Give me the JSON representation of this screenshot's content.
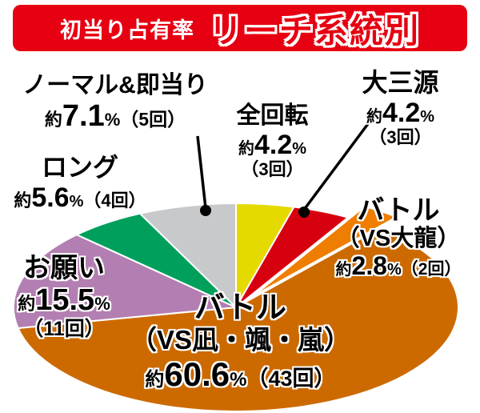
{
  "header": {
    "subtitle": "初当り占有率",
    "title": "リーチ系統別",
    "bg_color": "#e60012",
    "subtitle_color": "#ffffff",
    "title_color": "#e60012"
  },
  "chart_data": {
    "type": "pie",
    "title": "初当り占有率 リーチ系統別",
    "start_angle_deg": -90,
    "direction": "clockwise",
    "unit": "%",
    "series": [
      {
        "id": "zenkaiten",
        "name": "全回転",
        "value": 4.2,
        "count": 3,
        "color": "#e4da00",
        "label": {
          "name_lines": [
            "全回転"
          ],
          "approx": "約",
          "value_display": "4.2",
          "percent": "%",
          "count_display": "（3回）"
        }
      },
      {
        "id": "daisangen",
        "name": "大三源",
        "value": 4.2,
        "count": 3,
        "color": "#d7000f",
        "label": {
          "name_lines": [
            "大三源"
          ],
          "approx": "約",
          "value_display": "4.2",
          "percent": "%",
          "count_display": "（3回）"
        }
      },
      {
        "id": "battle-dairyu",
        "name": "バトル（VS大龍）",
        "value": 2.8,
        "count": 2,
        "color": "#ee7d00",
        "exploded": true,
        "label": {
          "name_lines": [
            "バトル",
            "（VS大龍）"
          ],
          "approx": "約",
          "value_display": "2.8",
          "percent": "%",
          "count_display": "（2回）"
        }
      },
      {
        "id": "battle-main",
        "name": "バトル（VS凪・颯・嵐）",
        "value": 60.6,
        "count": 43,
        "color": "#cc6a00",
        "label": {
          "name_lines": [
            "バトル",
            "（VS凪・颯・嵐）"
          ],
          "approx": "約",
          "value_display": "60.6",
          "percent": "%",
          "count_display": "（43回）"
        }
      },
      {
        "id": "onegai",
        "name": "お願い",
        "value": 15.5,
        "count": 11,
        "color": "#b37eb1",
        "label": {
          "name_lines": [
            "お願い"
          ],
          "approx": "約",
          "value_display": "15.5",
          "percent": "%",
          "count_display": "（11回）"
        }
      },
      {
        "id": "long",
        "name": "ロング",
        "value": 5.6,
        "count": 4,
        "color": "#00a05c",
        "label": {
          "name_lines": [
            "ロング"
          ],
          "approx": "約",
          "value_display": "5.6",
          "percent": "%",
          "count_display": "（4回）"
        }
      },
      {
        "id": "normal",
        "name": "ノーマル&即当り",
        "value": 7.1,
        "count": 5,
        "color": "#c8c9ca",
        "label": {
          "name_lines": [
            "ノーマル&即当り"
          ],
          "approx": "約",
          "value_display": "7.1",
          "percent": "%",
          "count_display": "（5回）"
        }
      }
    ]
  }
}
